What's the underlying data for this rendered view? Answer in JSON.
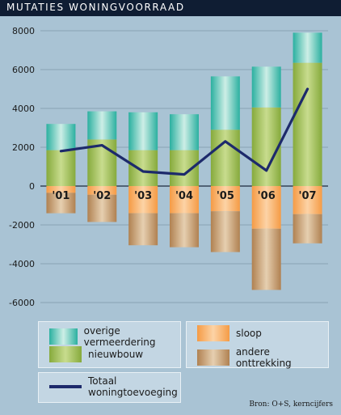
{
  "title": "MUTATIES WONINGVOORRAAD",
  "source": "Bron: O+S, kerncijfers",
  "legend": {
    "overige": "overige vermeerdering",
    "nieuwbouw": "nieuwbouw",
    "sloop": "sloop",
    "onttrekking": "andere onttrekking",
    "totaal_line1": "Totaal",
    "totaal_line2": "woningtoevoeging"
  },
  "colors": {
    "overige": "#3fbfb0",
    "nieuwbouw": "#9cbd55",
    "sloop": "#f6a75d",
    "onttrekking": "#c09569",
    "line": "#1d2a6b"
  },
  "chart_data": {
    "type": "bar",
    "categories": [
      "'01",
      "'02",
      "'03",
      "'04",
      "'05",
      "'06",
      "'07"
    ],
    "ylim": [
      -6000,
      8000
    ],
    "yticks": [
      -6000,
      -4000,
      -2000,
      0,
      2000,
      4000,
      6000,
      8000
    ],
    "grid": true,
    "series": [
      {
        "name": "nieuwbouw",
        "stack": "positive",
        "values": [
          1850,
          2400,
          1850,
          1850,
          2900,
          4050,
          6350
        ]
      },
      {
        "name": "overige vermeerdering",
        "stack": "positive",
        "values": [
          1350,
          1450,
          1950,
          1850,
          2750,
          2100,
          1550
        ]
      },
      {
        "name": "sloop",
        "stack": "negative",
        "values": [
          -350,
          -450,
          -1400,
          -1400,
          -1300,
          -2200,
          -1450
        ]
      },
      {
        "name": "andere onttrekking",
        "stack": "negative",
        "values": [
          -1050,
          -1400,
          -1650,
          -1750,
          -2100,
          -3150,
          -1500
        ]
      },
      {
        "name": "Totaal woningtoevoeging",
        "type": "line",
        "values": [
          1800,
          2100,
          750,
          600,
          2300,
          800,
          5000
        ]
      }
    ]
  }
}
